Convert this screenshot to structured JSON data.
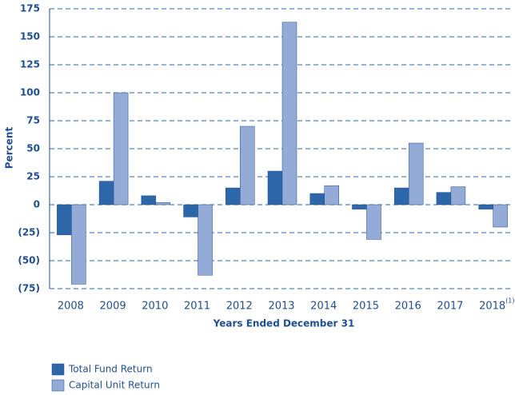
{
  "chart_data": {
    "type": "bar",
    "x_label": "Years Ended December 31",
    "y_label": "Percent",
    "categories": [
      "2008",
      "2009",
      "2010",
      "2011",
      "2012",
      "2013",
      "2014",
      "2015",
      "2016",
      "2017",
      "2018"
    ],
    "footnote_marker": "(1)",
    "series": [
      {
        "name": "Total Fund Return",
        "color": "#2d67a9",
        "values": [
          -27,
          21,
          8,
          -11,
          15,
          30,
          10,
          -4,
          15,
          11,
          -4
        ]
      },
      {
        "name": "Capital Unit Return",
        "color": "#93abd6",
        "values": [
          -71,
          100,
          2,
          -63,
          70,
          163,
          17,
          -31,
          55,
          16,
          -20
        ]
      }
    ],
    "ylim": [
      -75,
      175
    ],
    "yticks": [
      {
        "value": -75,
        "label": "(75)"
      },
      {
        "value": -50,
        "label": "(50)"
      },
      {
        "value": -25,
        "label": "(25)"
      },
      0,
      25,
      50,
      75,
      100,
      125,
      150,
      175
    ],
    "grid": true
  }
}
